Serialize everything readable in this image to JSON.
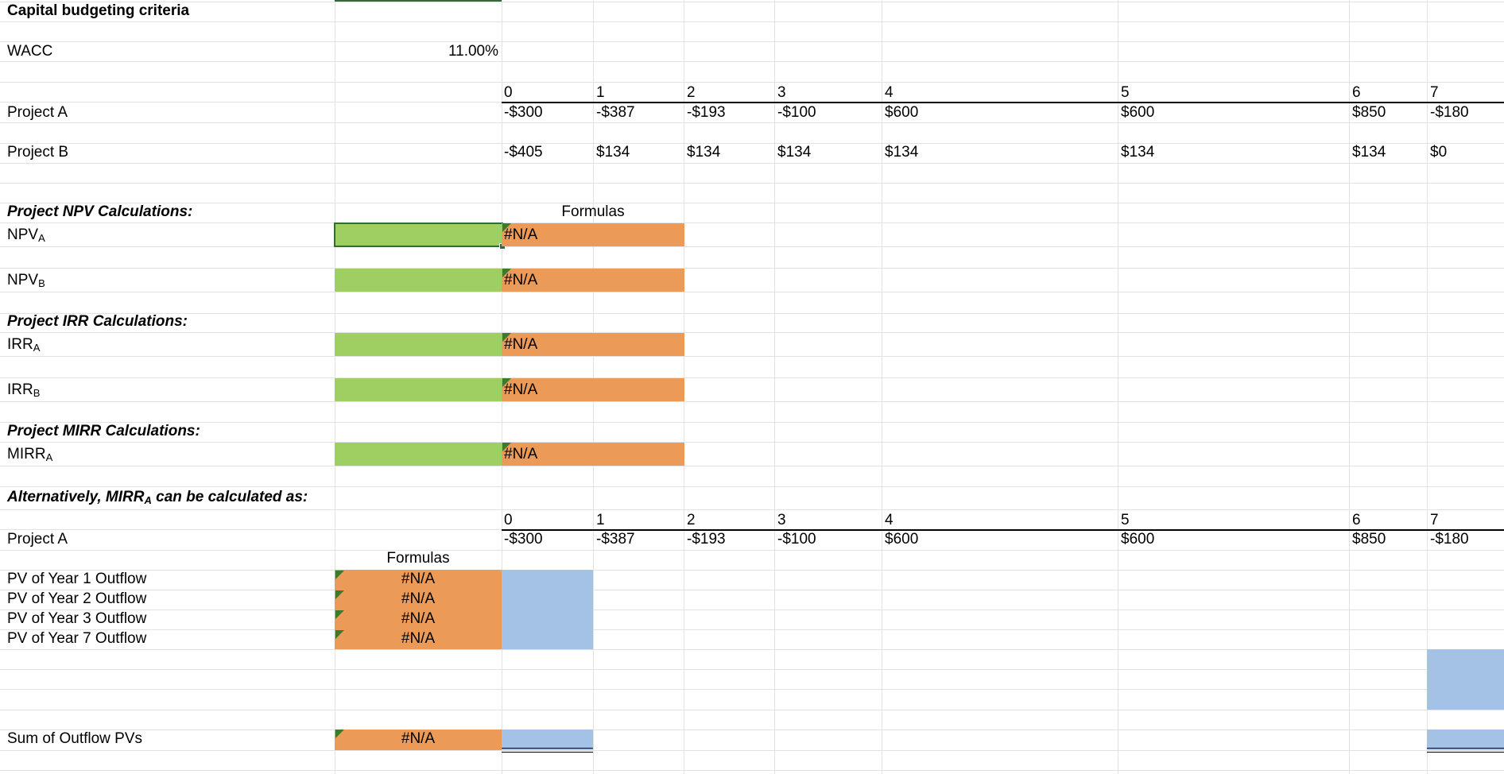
{
  "sheet": {
    "title": "Capital budgeting criteria",
    "wacc_label": "WACC",
    "wacc_value": "11.00%",
    "periods": [
      "0",
      "1",
      "2",
      "3",
      "4",
      "5",
      "6",
      "7"
    ],
    "project_a": {
      "label": "Project A",
      "flows": [
        "-$300",
        "-$387",
        "-$193",
        "-$100",
        "$600",
        "$600",
        "$850",
        "-$180"
      ]
    },
    "project_b": {
      "label": "Project B",
      "flows": [
        "-$405",
        "$134",
        "$134",
        "$134",
        "$134",
        "$134",
        "$134",
        "$0"
      ]
    },
    "formulas_label": "Formulas",
    "npv_section": "Project NPV Calculations:",
    "irr_section": "Project IRR Calculations:",
    "mirr_section": "Project MIRR Calculations:",
    "alt_section_pre": "Alternatively, MIRR",
    "alt_section_sub": "A",
    "alt_section_post": " can be calculated as:",
    "metrics": {
      "npv_a": {
        "base": "NPV",
        "sub": "A"
      },
      "npv_b": {
        "base": "NPV",
        "sub": "B"
      },
      "irr_a": {
        "base": "IRR",
        "sub": "A"
      },
      "irr_b": {
        "base": "IRR",
        "sub": "B"
      },
      "mirr_a": {
        "base": "MIRR",
        "sub": "A"
      }
    },
    "na": "#N/A",
    "pv_rows": [
      "PV of Year 1 Outflow",
      "PV of Year 2 Outflow",
      "PV of Year 3 Outflow",
      "PV of Year 7 Outflow"
    ],
    "sum_label": "Sum of Outflow PVs"
  },
  "colors": {
    "input_green": "#9fcf63",
    "formula_orange": "#eb9b57",
    "input_blue": "#a4c2e6",
    "comment_marker": "#3c7a2e",
    "gridline": "#e2e2e2"
  }
}
